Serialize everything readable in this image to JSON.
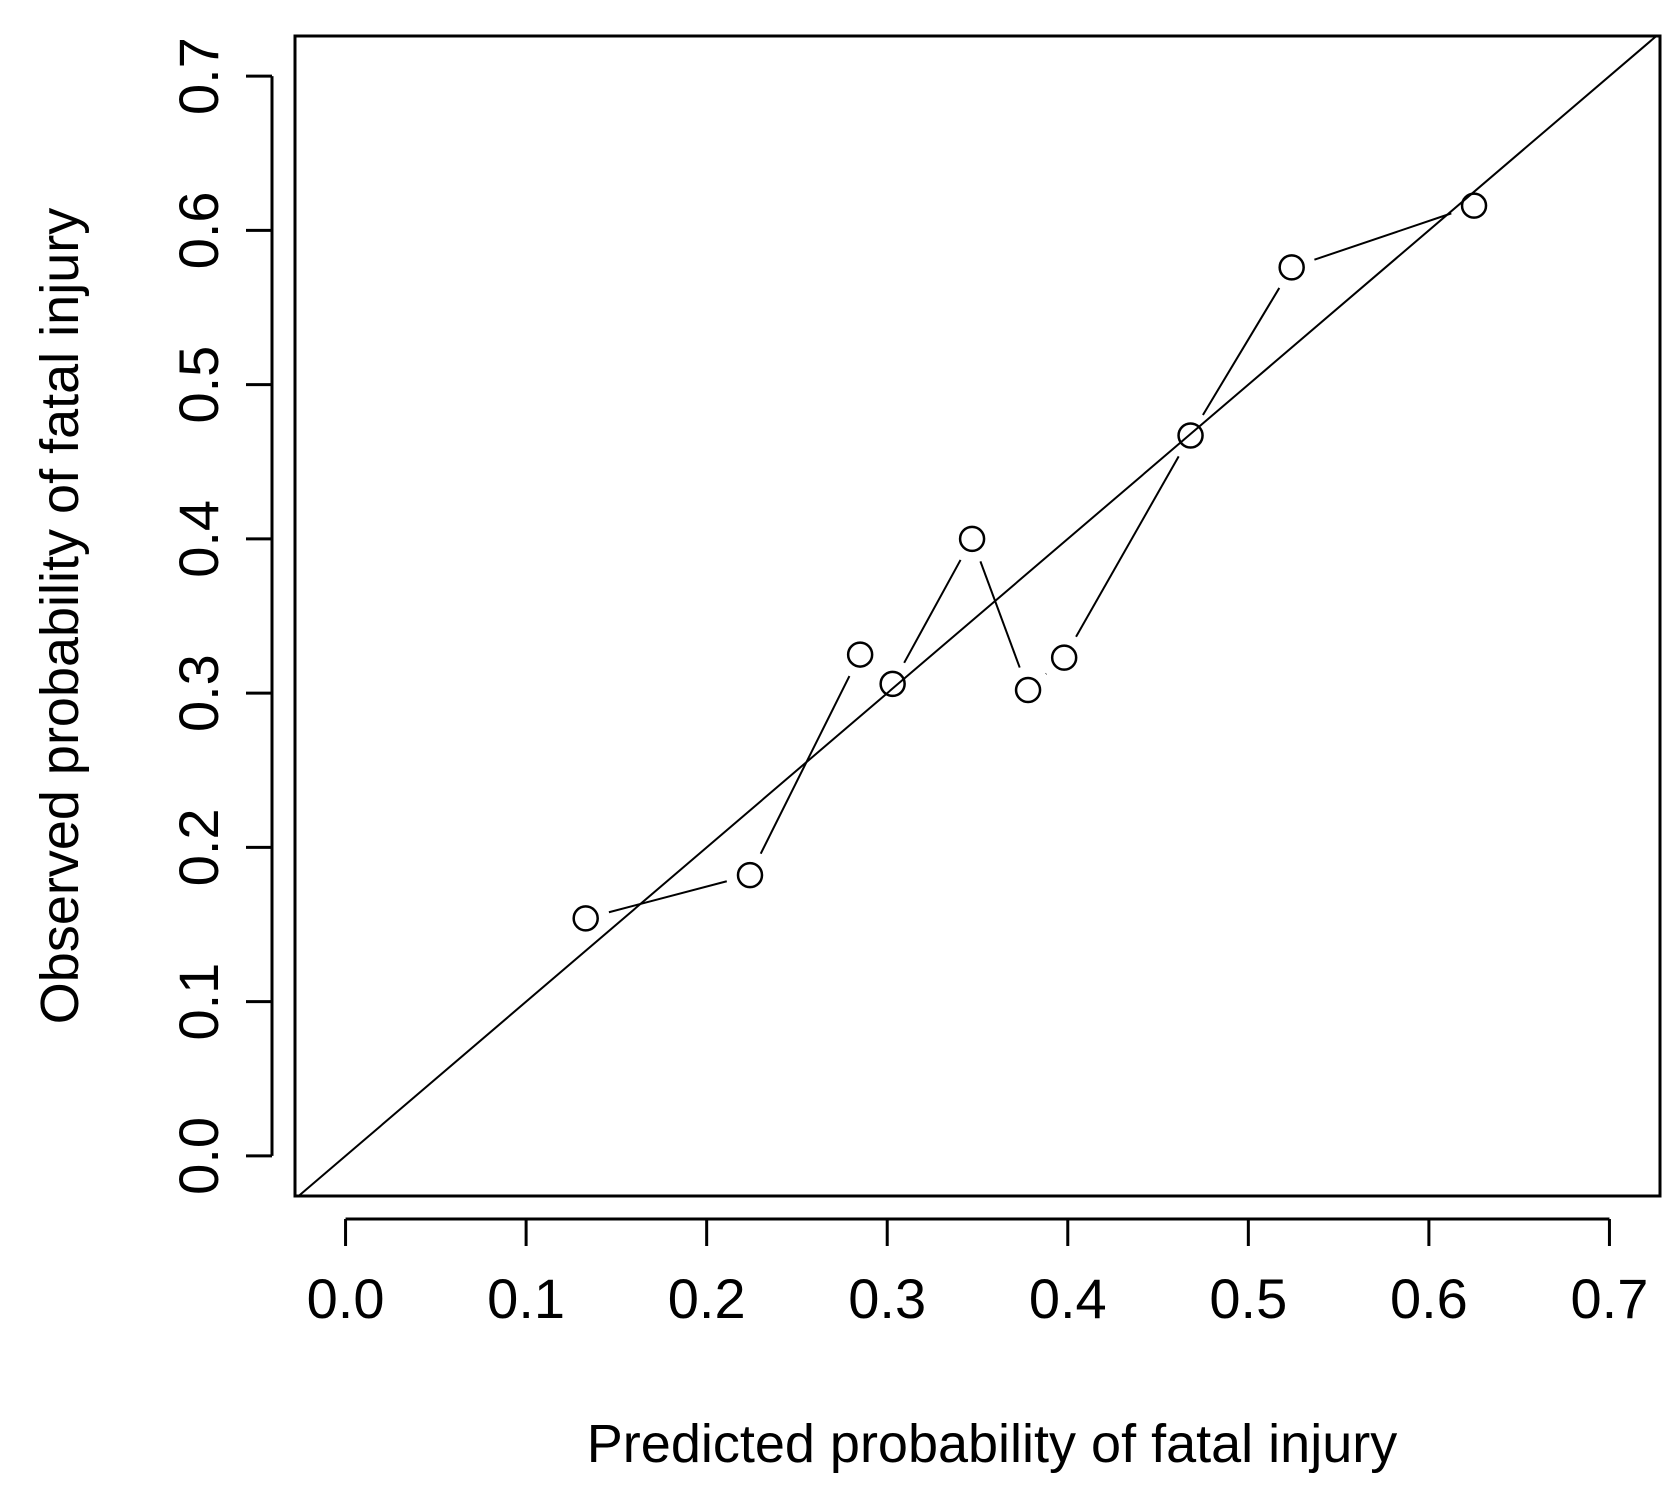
{
  "chart_data": {
    "type": "scatter",
    "xlabel": "Predicted probability of fatal injury",
    "ylabel": "Observed probability of fatal injury",
    "xlim": [
      -0.028,
      0.728
    ],
    "ylim": [
      -0.026,
      0.726
    ],
    "x_ticks": [
      "0.0",
      "0.1",
      "0.2",
      "0.3",
      "0.4",
      "0.5",
      "0.6",
      "0.7"
    ],
    "y_ticks": [
      "0.0",
      "0.1",
      "0.2",
      "0.3",
      "0.4",
      "0.5",
      "0.6",
      "0.7"
    ],
    "grid": false,
    "reference_line": "y = x",
    "series": [
      {
        "marker": "open-circle",
        "connected": true,
        "points": [
          {
            "x": 0.133,
            "y": 0.154
          },
          {
            "x": 0.224,
            "y": 0.182
          },
          {
            "x": 0.285,
            "y": 0.325
          },
          {
            "x": 0.303,
            "y": 0.306
          },
          {
            "x": 0.347,
            "y": 0.4
          },
          {
            "x": 0.378,
            "y": 0.302
          },
          {
            "x": 0.398,
            "y": 0.323
          },
          {
            "x": 0.468,
            "y": 0.467
          },
          {
            "x": 0.524,
            "y": 0.576
          },
          {
            "x": 0.625,
            "y": 0.616
          }
        ]
      }
    ]
  }
}
